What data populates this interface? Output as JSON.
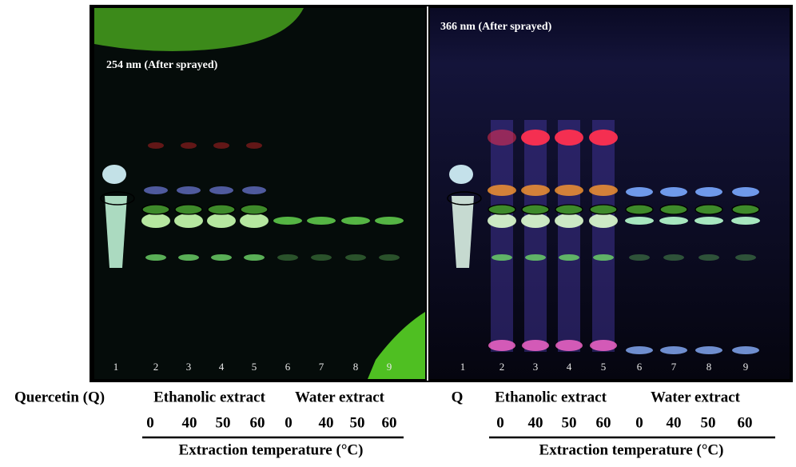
{
  "panels": [
    {
      "title": "254 nm (After sprayed)",
      "lanes": [
        1,
        2,
        3,
        4,
        5,
        6,
        7,
        8,
        9
      ]
    },
    {
      "title": "366 nm (After sprayed)",
      "lanes": [
        1,
        2,
        3,
        4,
        5,
        6,
        7,
        8,
        9
      ]
    }
  ],
  "captions": [
    {
      "quercetin": "Quercetin (Q)",
      "ethanolic": "Ethanolic extract",
      "water": "Water extract",
      "temperatures": [
        0,
        40,
        50,
        60,
        0,
        40,
        50,
        60
      ],
      "axis_label": "Extraction temperature (°C)"
    },
    {
      "quercetin": "Q",
      "ethanolic": "Ethanolic extract",
      "water": "Water extract",
      "temperatures": [
        0,
        40,
        50,
        60,
        0,
        40,
        50,
        60
      ],
      "axis_label": "Extraction temperature (°C)"
    }
  ]
}
